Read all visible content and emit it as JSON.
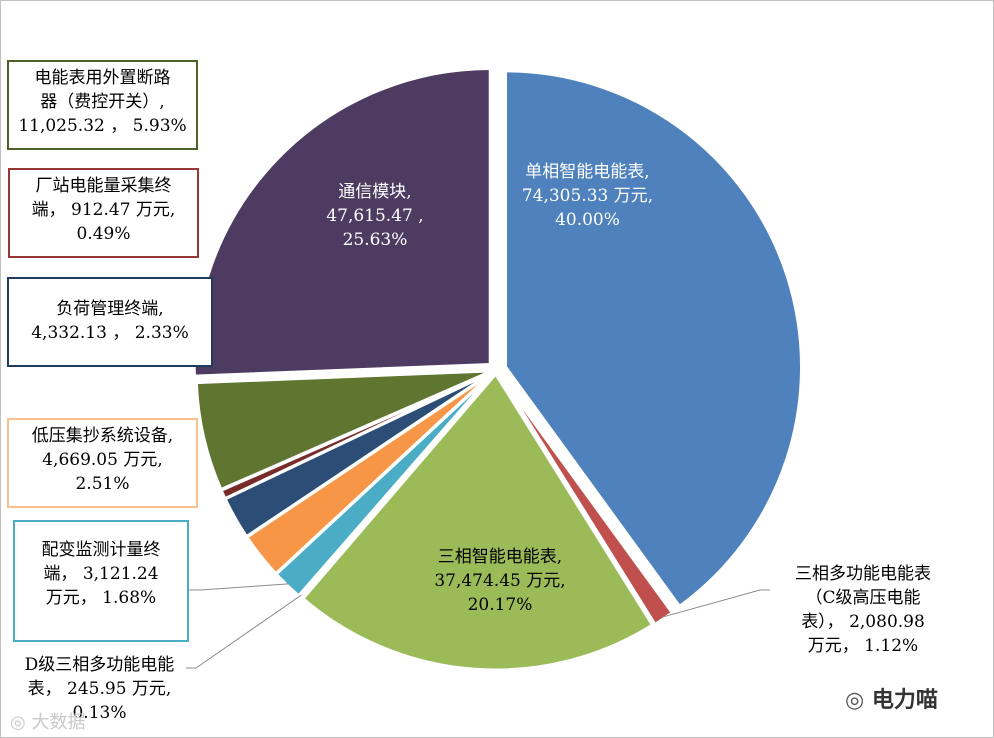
{
  "chart_data": {
    "type": "pie",
    "slices": [
      {
        "label": "单相智能电能表,\n74,305.33 万元,\n40.00%",
        "value": 74305.33,
        "percent": 40.0,
        "color": "#4f81bd"
      },
      {
        "label": "三相多功能电能表\n（C级高压电能\n表）， 2,080.98\n万元， 1.12%",
        "value": 2080.98,
        "percent": 1.12,
        "color": "#c0504d"
      },
      {
        "label": "三相智能电能表,\n37,474.45 万元,\n20.17%",
        "value": 37474.45,
        "percent": 20.17,
        "color": "#9bbb59"
      },
      {
        "label": "D级三相多功能电能\n表， 245.95 万元,\n0.13%",
        "value": 245.95,
        "percent": 0.13,
        "color": "#8064a2"
      },
      {
        "label": "配变监测计量终\n端， 3,121.24\n万元， 1.68%",
        "value": 3121.24,
        "percent": 1.68,
        "color": "#4bacc6"
      },
      {
        "label": "低压集抄系统设备,\n4,669.05 万元,\n2.51%",
        "value": 4669.05,
        "percent": 2.51,
        "color": "#f79646"
      },
      {
        "label": "负荷管理终端,\n4,332.13 ， 2.33%",
        "value": 4332.13,
        "percent": 2.33,
        "color": "#2c4d75"
      },
      {
        "label": "厂站电能量采集终\n端， 912.47 万元,\n0.49%",
        "value": 912.47,
        "percent": 0.49,
        "color": "#772c2a"
      },
      {
        "label": "电能表用外置断路\n器（费控开关）,\n11,025.32 ， 5.93%",
        "value": 11025.32,
        "percent": 5.93,
        "color": "#5f7530"
      },
      {
        "label": "通信模块,\n47,615.47 ,\n25.63%",
        "value": 47615.47,
        "percent": 25.63,
        "color": "#4d3b62"
      }
    ]
  },
  "watermark": {
    "left": "大数据",
    "right": "电力喵"
  }
}
